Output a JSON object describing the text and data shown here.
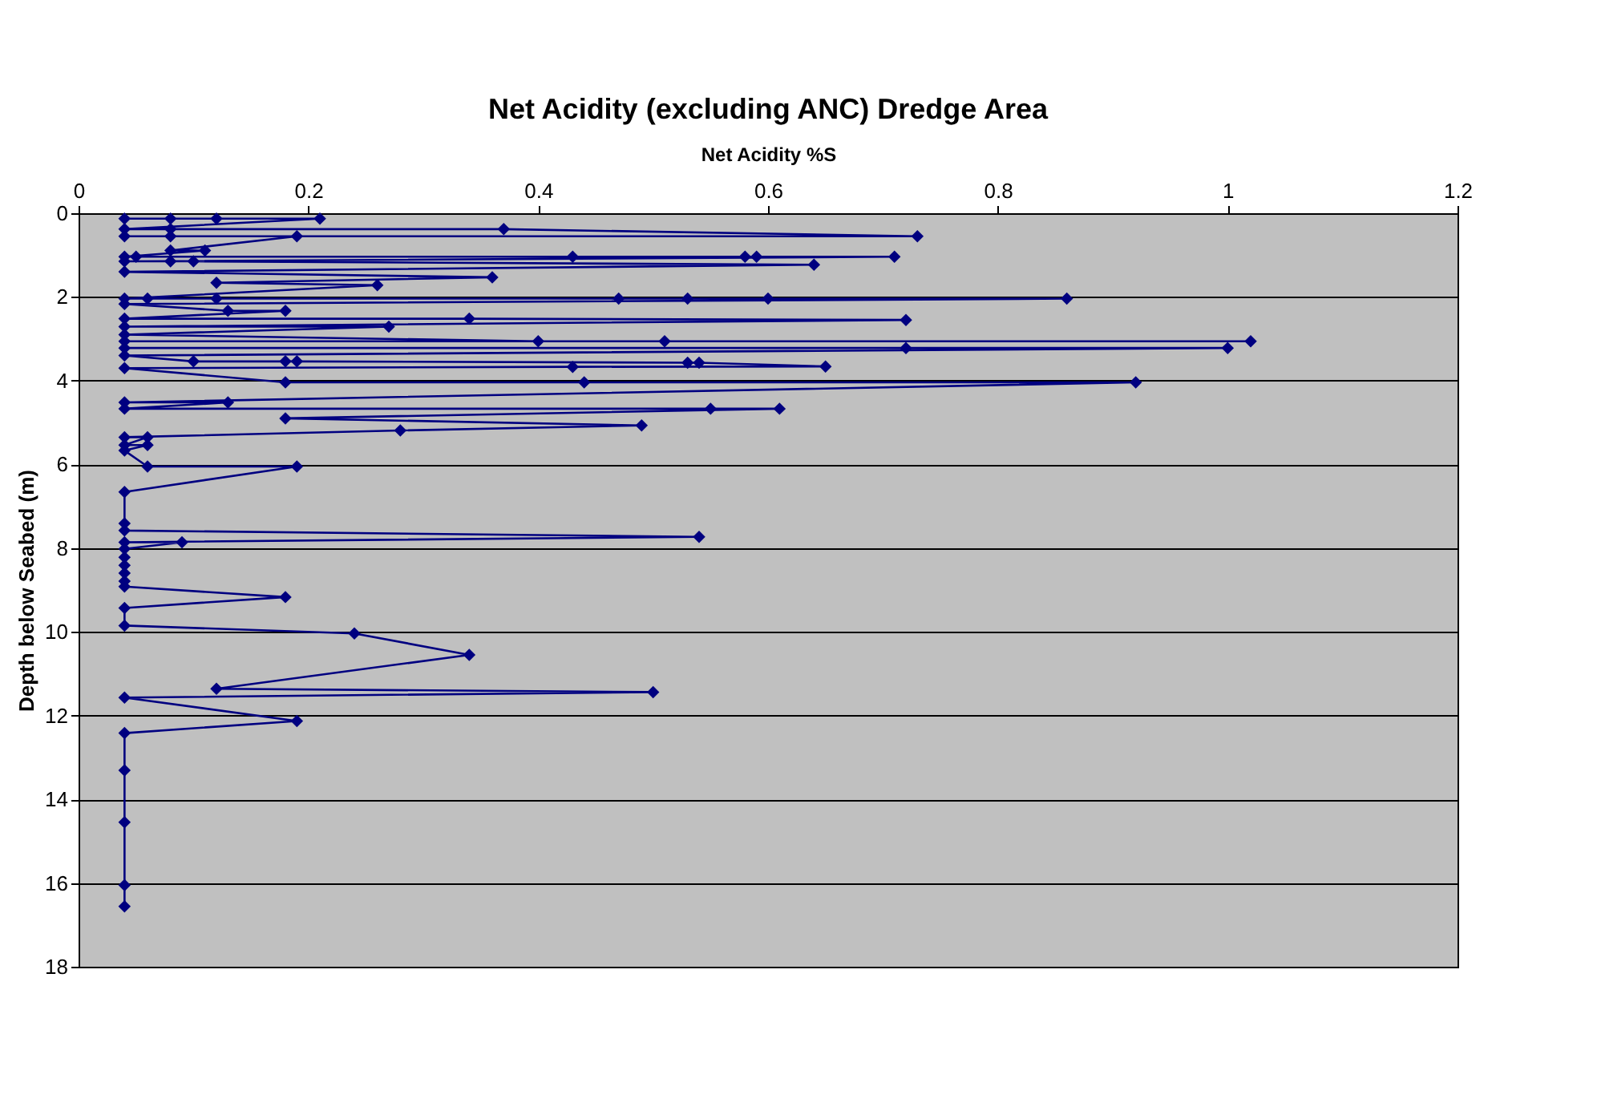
{
  "chart_data": {
    "type": "line",
    "title": "Net Acidity (excluding ANC) Dredge Area",
    "xlabel": "Net Acidity %S",
    "ylabel": "Depth below Seabed (m)",
    "x": [
      0.04,
      0.08,
      0.12,
      0.21,
      0.04,
      0.08,
      0.37,
      0.73,
      0.04,
      0.08,
      0.19,
      0.08,
      0.11,
      0.04,
      0.05,
      0.43,
      0.58,
      0.59,
      0.71,
      0.04,
      0.08,
      0.1,
      0.64,
      0.04,
      0.36,
      0.12,
      0.26,
      0.04,
      0.06,
      0.12,
      0.47,
      0.53,
      0.6,
      0.86,
      0.04,
      0.13,
      0.18,
      0.04,
      0.34,
      0.72,
      0.04,
      0.27,
      0.04,
      0.4,
      0.51,
      1.02,
      0.04,
      0.04,
      0.72,
      1.0,
      0.04,
      0.1,
      0.18,
      0.19,
      0.53,
      0.54,
      0.65,
      0.43,
      0.04,
      0.18,
      0.44,
      0.92,
      0.04,
      0.13,
      0.04,
      0.55,
      0.61,
      0.18,
      0.49,
      0.28,
      0.04,
      0.06,
      0.04,
      0.06,
      0.04,
      0.06,
      0.19,
      0.04,
      0.04,
      0.04,
      0.54,
      0.04,
      0.09,
      0.04,
      0.04,
      0.04,
      0.04,
      0.04,
      0.04,
      0.18,
      0.04,
      0.04,
      0.24,
      0.34,
      0.12,
      0.5,
      0.04,
      0.19,
      0.04,
      0.04,
      0.04,
      0.04,
      0.04
    ],
    "series": [
      {
        "color": "#000080",
        "values": [
          0.13,
          0.13,
          0.13,
          0.13,
          0.38,
          0.38,
          0.38,
          0.55,
          0.55,
          0.55,
          0.55,
          0.89,
          0.89,
          1.04,
          1.04,
          1.04,
          1.04,
          1.04,
          1.04,
          1.15,
          1.15,
          1.15,
          1.23,
          1.4,
          1.53,
          1.66,
          1.72,
          2.04,
          2.04,
          2.04,
          2.04,
          2.04,
          2.04,
          2.04,
          2.17,
          2.33,
          2.33,
          2.52,
          2.52,
          2.55,
          2.71,
          2.71,
          2.9,
          3.06,
          3.06,
          3.06,
          3.06,
          3.22,
          3.22,
          3.22,
          3.4,
          3.54,
          3.54,
          3.54,
          3.57,
          3.57,
          3.66,
          3.67,
          3.7,
          4.04,
          4.04,
          4.04,
          4.52,
          4.52,
          4.67,
          4.67,
          4.67,
          4.9,
          5.07,
          5.19,
          5.35,
          5.35,
          5.54,
          5.54,
          5.67,
          6.05,
          6.05,
          6.66,
          7.41,
          7.58,
          7.73,
          7.86,
          7.86,
          8.02,
          8.22,
          8.41,
          8.6,
          8.79,
          8.92,
          9.17,
          9.43,
          9.85,
          10.04,
          10.55,
          11.36,
          11.44,
          11.57,
          12.13,
          12.42,
          13.31,
          14.55,
          16.05,
          16.56
        ]
      }
    ],
    "xlim": [
      0,
      1.2
    ],
    "xticks": [
      0,
      0.2,
      0.4,
      0.6,
      0.8,
      1,
      1.2
    ],
    "ylim": [
      18,
      0
    ],
    "yticks": [
      0,
      2,
      4,
      6,
      8,
      10,
      12,
      14,
      16,
      18
    ],
    "grid": "y",
    "marker": "diamond",
    "line_style": "solid"
  }
}
